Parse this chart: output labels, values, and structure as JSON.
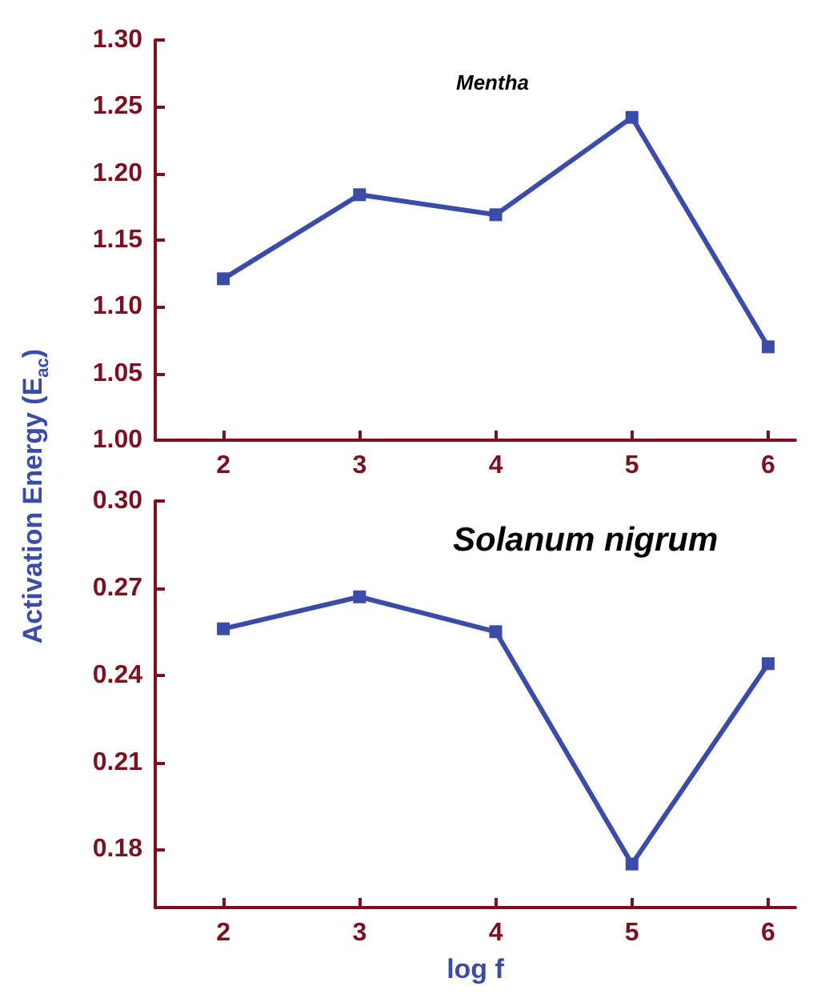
{
  "chart_data": [
    {
      "type": "line",
      "title": "Mentha",
      "ylabel": "Activation Energy (E$_{ac}$)",
      "x": [
        2,
        3,
        4,
        5,
        6
      ],
      "series": [
        {
          "color": "#3b4ba8",
          "values": [
            1.121,
            1.184,
            1.169,
            1.242,
            1.07
          ]
        }
      ],
      "xlim": [
        1.5,
        6.2
      ],
      "xticks": [
        2,
        3,
        4,
        5,
        6
      ],
      "ylim": [
        1.0,
        1.3
      ],
      "yticks": [
        {
          "value": 1.0,
          "label": "1.00"
        },
        {
          "value": 1.05,
          "label": "1.05"
        },
        {
          "value": 1.1,
          "label": "1.10"
        },
        {
          "value": 1.15,
          "label": "1.15"
        },
        {
          "value": 1.2,
          "label": "1.20"
        },
        {
          "value": 1.25,
          "label": "1.25"
        },
        {
          "value": 1.3,
          "label": "1.30"
        }
      ],
      "marker": "square",
      "line_style": "solid",
      "grid": false
    },
    {
      "type": "line",
      "title": "Solanum nigrum",
      "xlabel": "log f",
      "x": [
        2,
        3,
        4,
        5,
        6
      ],
      "series": [
        {
          "color": "#3b4ba8",
          "values": [
            0.256,
            0.267,
            0.255,
            0.175,
            0.244
          ]
        }
      ],
      "xlim": [
        1.5,
        6.2
      ],
      "xticks": [
        2,
        3,
        4,
        5,
        6
      ],
      "ylim": [
        0.16,
        0.3
      ],
      "yticks": [
        {
          "value": 0.18,
          "label": "0.18"
        },
        {
          "value": 0.21,
          "label": "0.21"
        },
        {
          "value": 0.24,
          "label": "0.24"
        },
        {
          "value": 0.27,
          "label": "0.27"
        },
        {
          "value": 0.3,
          "label": "0.30"
        }
      ],
      "marker": "square",
      "line_style": "solid",
      "grid": false
    }
  ]
}
